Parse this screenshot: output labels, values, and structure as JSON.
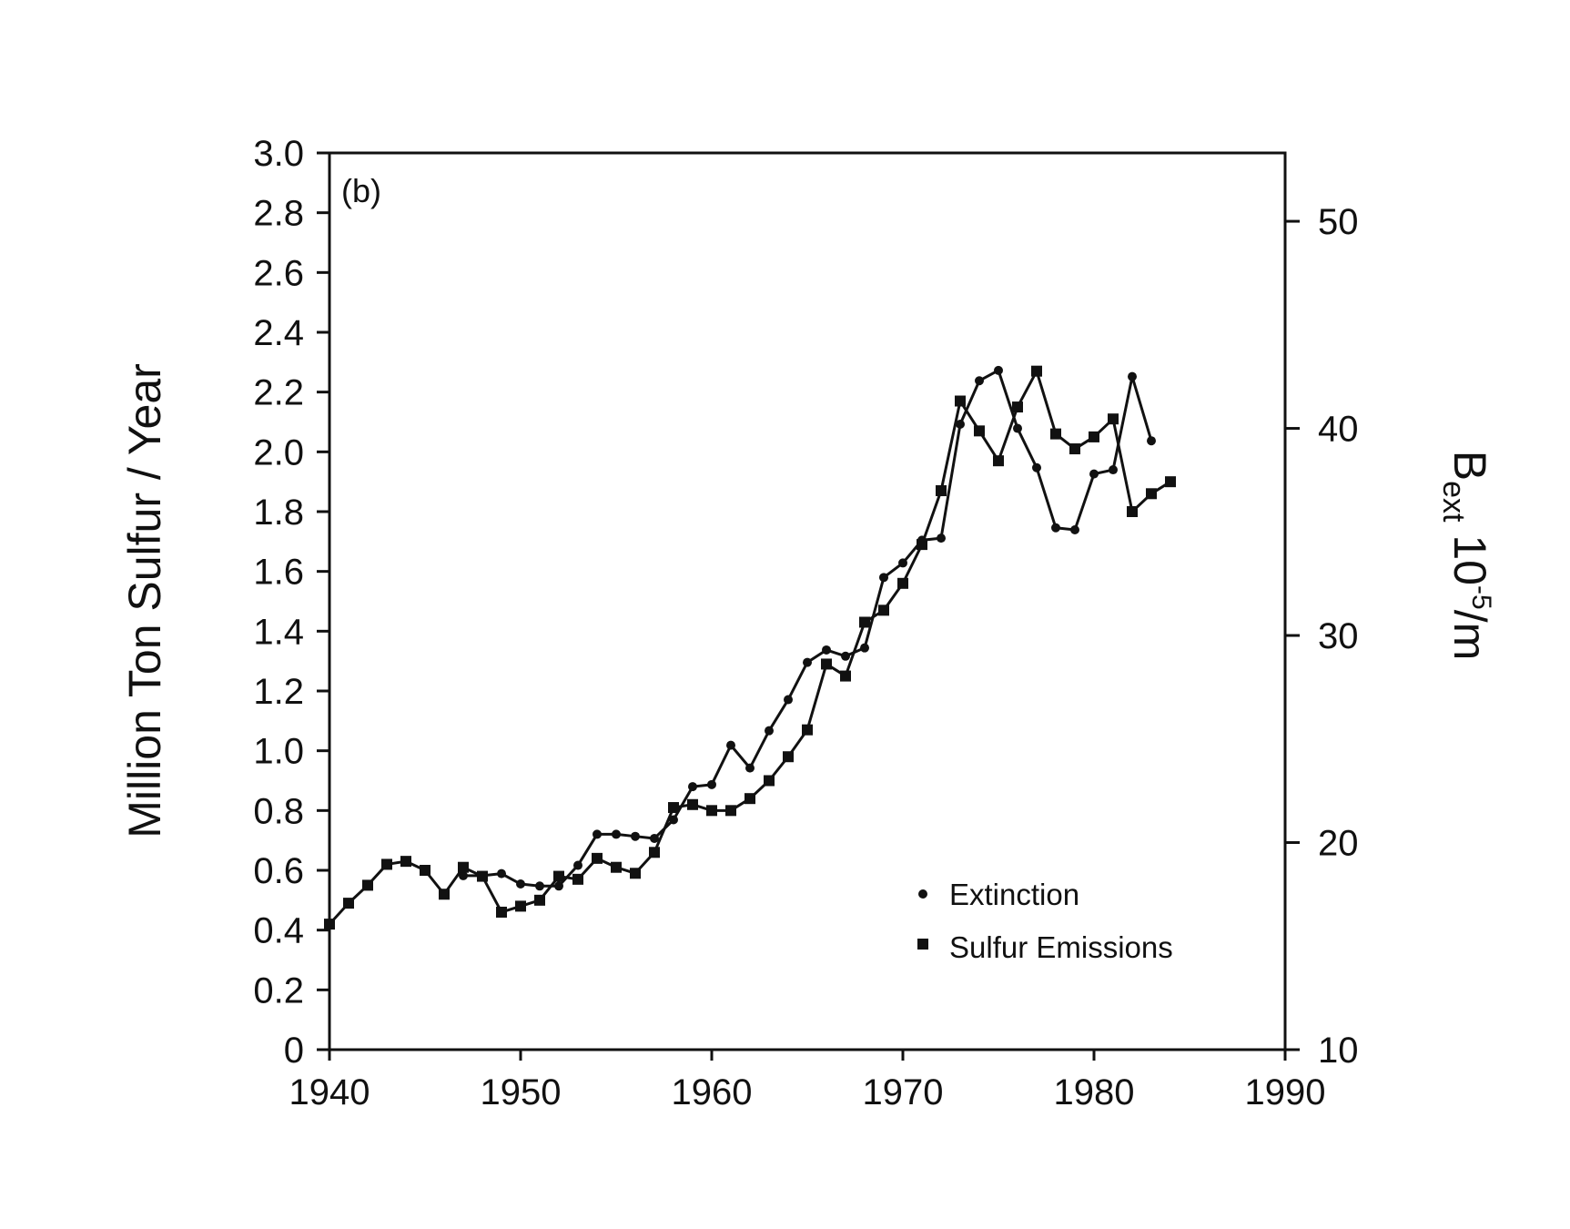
{
  "chart_data": {
    "type": "line",
    "panel_label": "(b)",
    "ylabel_left": "Million Ton Sulfur / Year",
    "ylabel_right_main": "B",
    "ylabel_right_sub": "ext",
    "ylabel_right_rest": " 10",
    "ylabel_right_sup": "-5",
    "ylabel_right_unit": "/m",
    "xlim": [
      1940,
      1990
    ],
    "ylim_left": [
      0,
      3.0
    ],
    "ylim_right": [
      10,
      53.3
    ],
    "x_ticks": [
      "1940",
      "1950",
      "1960",
      "1970",
      "1980",
      "1990"
    ],
    "x_tick_values": [
      1940,
      1950,
      1960,
      1970,
      1980,
      1990
    ],
    "y_left_ticks": [
      "0",
      "0.2",
      "0.4",
      "0.6",
      "0.8",
      "1.0",
      "1.2",
      "1.4",
      "1.6",
      "1.8",
      "2.0",
      "2.2",
      "2.4",
      "2.6",
      "2.8",
      "3.0"
    ],
    "y_left_tick_values": [
      0,
      0.2,
      0.4,
      0.6,
      0.8,
      1.0,
      1.2,
      1.4,
      1.6,
      1.8,
      2.0,
      2.2,
      2.4,
      2.6,
      2.8,
      3.0
    ],
    "y_right_ticks": [
      "10",
      "20",
      "30",
      "40",
      "50"
    ],
    "y_right_tick_values": [
      10,
      20,
      30,
      40,
      50
    ],
    "grid": false,
    "legend_position": "bottom-right",
    "series": [
      {
        "name": "Extinction",
        "marker": "circle",
        "axis": "right",
        "x": [
          1947,
          1948,
          1949,
          1950,
          1951,
          1952,
          1953,
          1954,
          1955,
          1956,
          1957,
          1958,
          1959,
          1960,
          1961,
          1962,
          1963,
          1964,
          1965,
          1966,
          1967,
          1968,
          1969,
          1970,
          1971,
          1972,
          1973,
          1974,
          1975,
          1976,
          1977,
          1978,
          1979,
          1980,
          1981,
          1982,
          1983
        ],
        "y": [
          18.4,
          18.4,
          18.5,
          18.0,
          17.9,
          17.9,
          18.9,
          20.4,
          20.4,
          20.3,
          20.2,
          21.1,
          22.7,
          22.8,
          24.7,
          23.6,
          25.4,
          26.9,
          28.7,
          29.3,
          29.0,
          29.4,
          32.8,
          33.5,
          34.6,
          34.7,
          40.2,
          42.3,
          42.8,
          40.0,
          38.1,
          35.2,
          35.1,
          37.8,
          38.0,
          42.5,
          39.4
        ]
      },
      {
        "name": "Sulfur Emissions",
        "marker": "square",
        "axis": "left",
        "x": [
          1940,
          1941,
          1942,
          1943,
          1944,
          1945,
          1946,
          1947,
          1948,
          1949,
          1950,
          1951,
          1952,
          1953,
          1954,
          1955,
          1956,
          1957,
          1958,
          1959,
          1960,
          1961,
          1962,
          1963,
          1964,
          1965,
          1966,
          1967,
          1968,
          1969,
          1970,
          1971,
          1972,
          1973,
          1974,
          1975,
          1976,
          1977,
          1978,
          1979,
          1980,
          1981,
          1982,
          1983,
          1984
        ],
        "y": [
          0.42,
          0.49,
          0.55,
          0.62,
          0.63,
          0.6,
          0.52,
          0.61,
          0.58,
          0.46,
          0.48,
          0.5,
          0.58,
          0.57,
          0.64,
          0.61,
          0.59,
          0.66,
          0.81,
          0.82,
          0.8,
          0.8,
          0.84,
          0.9,
          0.98,
          1.07,
          1.29,
          1.25,
          1.43,
          1.47,
          1.56,
          1.69,
          1.87,
          2.17,
          2.07,
          1.97,
          2.15,
          2.27,
          2.06,
          2.01,
          2.05,
          2.11,
          1.8,
          1.86,
          1.9
        ]
      }
    ]
  }
}
